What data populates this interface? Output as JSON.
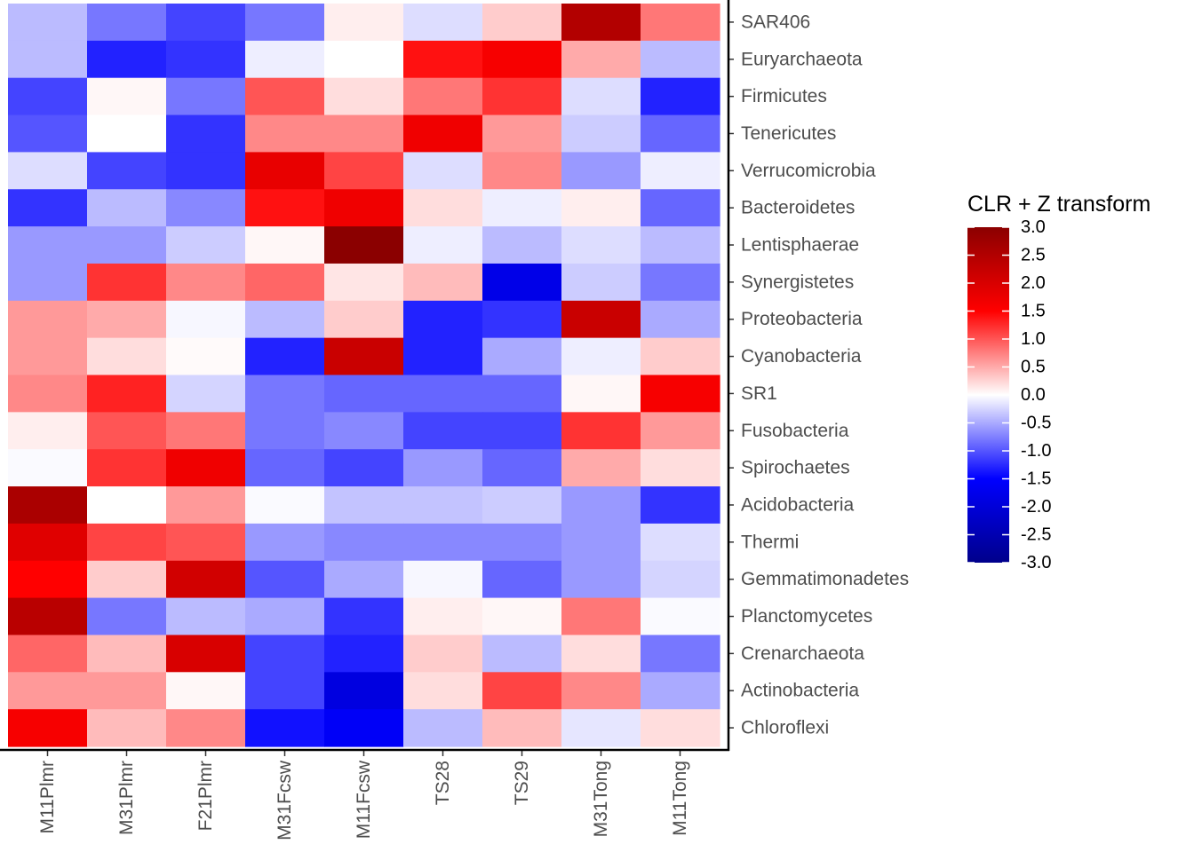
{
  "chart_data": {
    "type": "heatmap",
    "columns": [
      "M11Plmr",
      "M31Plmr",
      "F21Plmr",
      "M31Fcsw",
      "M11Fcsw",
      "TS28",
      "TS29",
      "M31Tong",
      "M11Tong"
    ],
    "rows": [
      "SAR406",
      "Euryarchaeota",
      "Firmicutes",
      "Tenericutes",
      "Verrucomicrobia",
      "Bacteroidetes",
      "Lentisphaerae",
      "Synergistetes",
      "Proteobacteria",
      "Cyanobacteria",
      "SR1",
      "Fusobacteria",
      "Spirochaetes",
      "Acidobacteria",
      "Thermi",
      "Gemmatimonadetes",
      "Planctomycetes",
      "Crenarchaeota",
      "Actinobacteria",
      "Chloroflexi"
    ],
    "values": [
      [
        -0.4,
        -0.8,
        -1.1,
        -0.8,
        0.1,
        -0.2,
        0.3,
        2.5,
        0.8
      ],
      [
        -0.4,
        -1.3,
        -1.2,
        -0.1,
        0.0,
        1.4,
        1.6,
        0.5,
        -0.4
      ],
      [
        -1.1,
        0.05,
        -0.8,
        1.0,
        0.2,
        0.8,
        1.2,
        -0.2,
        -1.3
      ],
      [
        -1.0,
        0.0,
        -1.2,
        0.7,
        0.7,
        1.7,
        0.6,
        -0.3,
        -0.9
      ],
      [
        -0.2,
        -1.1,
        -1.2,
        1.8,
        1.1,
        -0.2,
        0.7,
        -0.6,
        -0.1
      ],
      [
        -1.2,
        -0.4,
        -0.7,
        1.4,
        1.7,
        0.2,
        -0.1,
        0.1,
        -0.9
      ],
      [
        -0.6,
        -0.6,
        -0.3,
        0.05,
        3.0,
        -0.1,
        -0.4,
        -0.2,
        -0.4
      ],
      [
        -0.6,
        1.2,
        0.7,
        0.9,
        0.15,
        0.4,
        -1.8,
        -0.3,
        -0.8
      ],
      [
        0.6,
        0.5,
        -0.05,
        -0.4,
        0.3,
        -1.3,
        -1.2,
        2.2,
        -0.5
      ],
      [
        0.6,
        0.2,
        0.03,
        -1.3,
        2.2,
        -1.3,
        -0.5,
        -0.1,
        0.3
      ],
      [
        0.7,
        1.3,
        -0.25,
        -0.8,
        -0.9,
        -0.9,
        -0.9,
        0.05,
        1.6
      ],
      [
        0.1,
        1.0,
        0.8,
        -0.8,
        -0.7,
        -1.1,
        -1.1,
        1.2,
        0.6
      ],
      [
        -0.03,
        1.2,
        1.7,
        -0.9,
        -1.1,
        -0.6,
        -0.9,
        0.5,
        0.2
      ],
      [
        2.6,
        0.0,
        0.6,
        -0.03,
        -0.35,
        -0.35,
        -0.3,
        -0.6,
        -1.2
      ],
      [
        1.9,
        1.1,
        1.0,
        -0.6,
        -0.7,
        -0.7,
        -0.7,
        -0.6,
        -0.2
      ],
      [
        1.5,
        0.3,
        2.1,
        -1.0,
        -0.5,
        -0.05,
        -0.9,
        -0.6,
        -0.25
      ],
      [
        2.4,
        -0.8,
        -0.4,
        -0.5,
        -1.2,
        0.1,
        0.05,
        0.8,
        -0.03
      ],
      [
        0.9,
        0.4,
        2.0,
        -1.1,
        -1.3,
        0.3,
        -0.4,
        0.2,
        -0.8
      ],
      [
        0.6,
        0.6,
        0.05,
        -1.1,
        -1.9,
        0.2,
        1.1,
        0.7,
        -0.5
      ],
      [
        1.6,
        0.4,
        0.7,
        -1.4,
        -1.6,
        -0.4,
        0.4,
        -0.15,
        0.2
      ]
    ],
    "colorbar": {
      "title": "CLR + Z transform",
      "min": -3.0,
      "max": 3.0,
      "ticks": [
        3.0,
        2.5,
        2.0,
        1.5,
        1.0,
        0.5,
        0.0,
        -0.5,
        -1.0,
        -1.5,
        -2.0,
        -2.5,
        -3.0
      ],
      "tick_labels": [
        "3.0",
        "2.5",
        "2.0",
        "1.5",
        "1.0",
        "0.5",
        "0.0",
        "-0.5",
        "-1.0",
        "-1.5",
        "-2.0",
        "-2.5",
        "-3.0"
      ],
      "colors": {
        "low": "#00008b",
        "mid_low": "#0000ff",
        "mid": "#ffffff",
        "mid_high": "#ff0000",
        "high": "#8b0000"
      }
    },
    "legend_position": "right"
  }
}
